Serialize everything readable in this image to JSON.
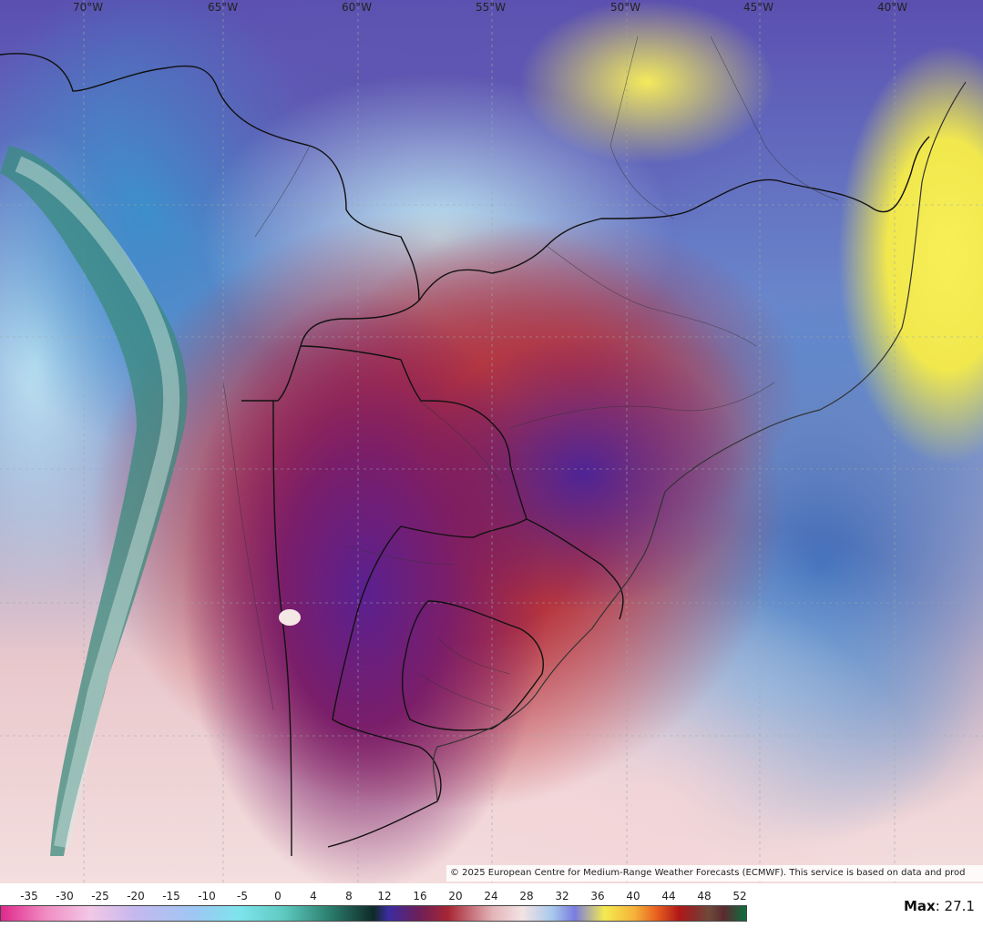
{
  "longitude_labels": [
    "70°W",
    "65°W",
    "60°W",
    "55°W",
    "50°W",
    "45°W",
    "40°W"
  ],
  "copyright": "© 2025 European Centre for Medium-Range Weather Forecasts (ECMWF). This service is based on data and prod",
  "legend": {
    "ticks": [
      "-35",
      "-30",
      "-25",
      "-20",
      "-15",
      "-10",
      "-5",
      "0",
      "4",
      "8",
      "12",
      "16",
      "20",
      "24",
      "28",
      "32",
      "36",
      "40",
      "44",
      "48",
      "52"
    ]
  },
  "max": {
    "label": "Max",
    "value": ": 27.1"
  },
  "colors": {
    "hot": "#9c1d2b",
    "cold": "#5b4fb0",
    "sea_warm": "#f1e84e",
    "ocean": "#3e6ab8"
  }
}
